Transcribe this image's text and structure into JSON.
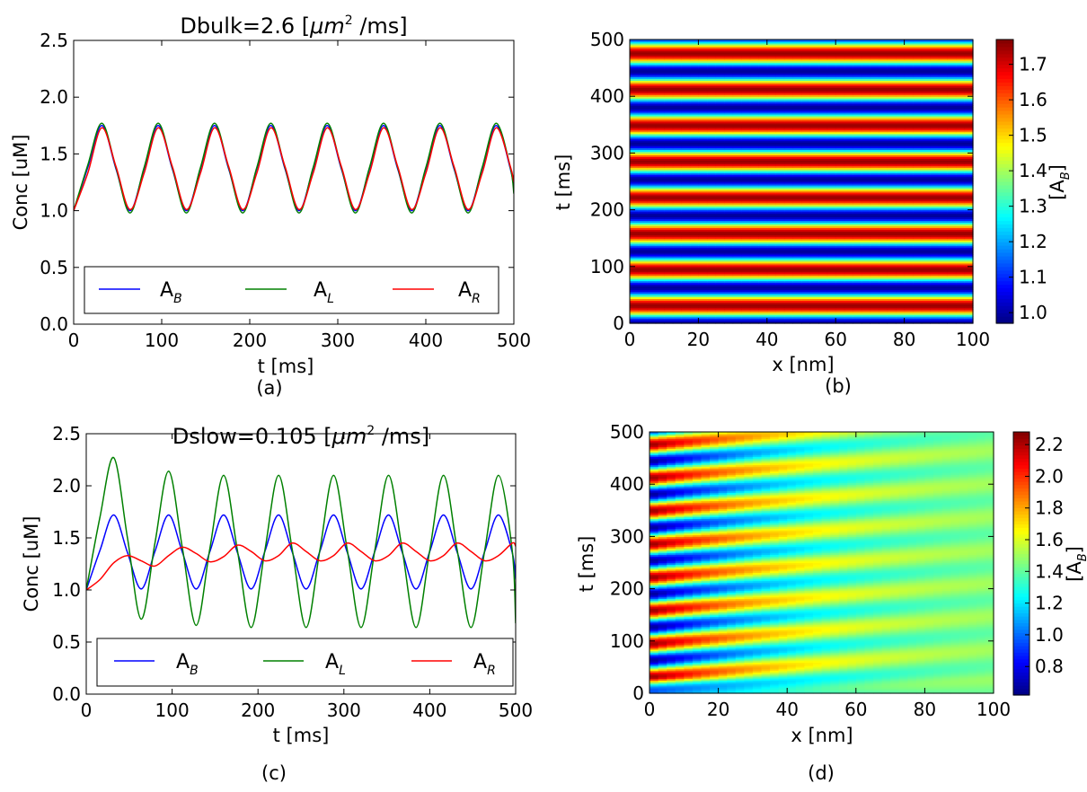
{
  "chart_data": [
    {
      "panel": "(a)",
      "type": "line",
      "title": "Dbulk=2.6 [μm² /ms]",
      "title_parts": [
        "Dbulk=2.6 [",
        "μm",
        "2",
        " /ms]"
      ],
      "xlabel": "t [ms]",
      "ylabel": "Conc [uM]",
      "xlim": [
        0,
        500
      ],
      "ylim": [
        0.0,
        2.5
      ],
      "xticks": [
        0,
        100,
        200,
        300,
        400,
        500
      ],
      "yticks": [
        "0.0",
        "0.5",
        "1.0",
        "1.5",
        "2.0",
        "2.5"
      ],
      "legend_position": "bottom",
      "period_ms": 63.5,
      "series": [
        {
          "name": "AB",
          "label_main": "A",
          "label_sub": "B",
          "color": "#0000ff",
          "x": [
            0,
            16,
            32,
            48,
            64,
            80,
            96,
            112,
            128,
            144,
            160,
            176,
            192,
            208,
            224,
            240,
            256,
            272,
            288,
            304,
            320,
            336,
            352,
            368,
            384,
            400,
            416,
            432,
            448,
            464,
            480,
            496,
            500
          ],
          "values": [
            1.0,
            1.38,
            1.75,
            1.37,
            1.0,
            1.37,
            1.75,
            1.37,
            1.0,
            1.37,
            1.75,
            1.37,
            1.0,
            1.37,
            1.75,
            1.37,
            1.0,
            1.37,
            1.75,
            1.37,
            1.0,
            1.37,
            1.75,
            1.37,
            1.0,
            1.37,
            1.75,
            1.37,
            1.0,
            1.37,
            1.75,
            1.37,
            1.2
          ]
        },
        {
          "name": "AL",
          "label_main": "A",
          "label_sub": "L",
          "color": "#008000",
          "x": [
            0,
            16,
            32,
            48,
            64,
            80,
            96,
            112,
            128,
            144,
            160,
            176,
            192,
            208,
            224,
            240,
            256,
            272,
            288,
            304,
            320,
            336,
            352,
            368,
            384,
            400,
            416,
            432,
            448,
            464,
            480,
            496,
            500
          ],
          "values": [
            1.0,
            1.4,
            1.77,
            1.38,
            0.98,
            1.38,
            1.77,
            1.38,
            0.98,
            1.38,
            1.77,
            1.38,
            0.98,
            1.38,
            1.77,
            1.38,
            0.98,
            1.38,
            1.77,
            1.38,
            0.98,
            1.38,
            1.77,
            1.38,
            0.98,
            1.38,
            1.77,
            1.38,
            0.98,
            1.38,
            1.77,
            1.38,
            1.15
          ]
        },
        {
          "name": "AR",
          "label_main": "A",
          "label_sub": "R",
          "color": "#ff0000",
          "x": [
            0,
            16,
            32,
            48,
            64,
            80,
            96,
            112,
            128,
            144,
            160,
            176,
            192,
            208,
            224,
            240,
            256,
            272,
            288,
            304,
            320,
            336,
            352,
            368,
            384,
            400,
            416,
            432,
            448,
            464,
            480,
            496,
            500
          ],
          "values": [
            1.0,
            1.33,
            1.73,
            1.39,
            1.01,
            1.33,
            1.73,
            1.39,
            1.01,
            1.33,
            1.73,
            1.39,
            1.01,
            1.33,
            1.73,
            1.39,
            1.01,
            1.33,
            1.73,
            1.39,
            1.01,
            1.33,
            1.73,
            1.39,
            1.01,
            1.33,
            1.73,
            1.39,
            1.01,
            1.33,
            1.73,
            1.39,
            1.25
          ]
        }
      ]
    },
    {
      "panel": "(b)",
      "type": "heatmap",
      "xlabel": "x [nm]",
      "ylabel": "t [ms]",
      "xlim": [
        0,
        100
      ],
      "ylim": [
        0,
        500
      ],
      "xticks": [
        0,
        20,
        40,
        60,
        80,
        100
      ],
      "yticks": [
        0,
        100,
        200,
        300,
        400,
        500
      ],
      "colorbar_label": "[AB]",
      "colorbar_label_parts": [
        "[A",
        "B",
        "]"
      ],
      "colorbar_range": [
        0.97,
        1.77
      ],
      "colorbar_ticks": [
        "1.0",
        "1.1",
        "1.2",
        "1.3",
        "1.4",
        "1.5",
        "1.6",
        "1.7"
      ],
      "colormap": "jet",
      "period_ms": 63.5,
      "mean": 1.37,
      "amplitude": 0.38,
      "spatial_damping_length_nm": 0
    },
    {
      "panel": "(c)",
      "type": "line",
      "title": "Dslow=0.105 [μm² /ms]",
      "title_parts": [
        "Dslow=0.105 [",
        "μm",
        "2",
        " /ms]"
      ],
      "xlabel": "t [ms]",
      "ylabel": "Conc [uM]",
      "xlim": [
        0,
        500
      ],
      "ylim": [
        0.0,
        2.5
      ],
      "xticks": [
        0,
        100,
        200,
        300,
        400,
        500
      ],
      "yticks": [
        "0.0",
        "0.5",
        "1.0",
        "1.5",
        "2.0",
        "2.5"
      ],
      "legend_position": "bottom",
      "period_ms": 63.5,
      "series": [
        {
          "name": "AB",
          "label_main": "A",
          "label_sub": "B",
          "color": "#0000ff",
          "x": [
            0,
            16,
            32,
            48,
            64,
            80,
            96,
            112,
            128,
            144,
            160,
            176,
            192,
            208,
            224,
            240,
            256,
            272,
            288,
            304,
            320,
            336,
            352,
            368,
            384,
            400,
            416,
            432,
            448,
            464,
            480,
            496,
            500
          ],
          "values": [
            1.0,
            1.38,
            1.72,
            1.36,
            1.01,
            1.37,
            1.72,
            1.36,
            1.01,
            1.37,
            1.72,
            1.36,
            1.01,
            1.37,
            1.72,
            1.36,
            1.01,
            1.37,
            1.72,
            1.36,
            1.01,
            1.37,
            1.72,
            1.36,
            1.01,
            1.37,
            1.72,
            1.36,
            1.01,
            1.37,
            1.72,
            1.36,
            1.1
          ]
        },
        {
          "name": "AL",
          "label_main": "A",
          "label_sub": "L",
          "color": "#008000",
          "x": [
            0,
            16,
            32,
            48,
            64,
            80,
            96,
            112,
            128,
            144,
            160,
            176,
            192,
            208,
            224,
            240,
            256,
            272,
            288,
            304,
            320,
            336,
            352,
            368,
            384,
            400,
            416,
            432,
            448,
            464,
            480,
            496,
            500
          ],
          "values": [
            1.0,
            1.7,
            2.27,
            1.5,
            0.72,
            1.45,
            2.14,
            1.4,
            0.66,
            1.4,
            2.1,
            1.38,
            0.64,
            1.38,
            2.1,
            1.38,
            0.64,
            1.38,
            2.1,
            1.38,
            0.64,
            1.38,
            2.1,
            1.38,
            0.64,
            1.38,
            2.1,
            1.38,
            0.64,
            1.38,
            2.1,
            1.38,
            0.68
          ]
        },
        {
          "name": "AR",
          "label_main": "A",
          "label_sub": "R",
          "color": "#ff0000",
          "x": [
            0,
            16,
            32,
            48,
            64,
            80,
            96,
            112,
            128,
            144,
            160,
            176,
            192,
            208,
            224,
            240,
            256,
            272,
            288,
            304,
            320,
            336,
            352,
            368,
            384,
            400,
            416,
            432,
            448,
            464,
            480,
            496,
            500
          ],
          "values": [
            1.0,
            1.1,
            1.26,
            1.33,
            1.28,
            1.23,
            1.33,
            1.41,
            1.35,
            1.27,
            1.32,
            1.43,
            1.37,
            1.28,
            1.33,
            1.45,
            1.37,
            1.28,
            1.33,
            1.45,
            1.37,
            1.28,
            1.33,
            1.45,
            1.37,
            1.28,
            1.33,
            1.45,
            1.37,
            1.28,
            1.33,
            1.45,
            1.42
          ]
        }
      ]
    },
    {
      "panel": "(d)",
      "type": "heatmap",
      "xlabel": "x [nm]",
      "ylabel": "t [ms]",
      "xlim": [
        0,
        100
      ],
      "ylim": [
        0,
        500
      ],
      "xticks": [
        0,
        20,
        40,
        60,
        80,
        100
      ],
      "yticks": [
        0,
        100,
        200,
        300,
        400,
        500
      ],
      "colorbar_label": "[AB]",
      "colorbar_label_parts": [
        "[A",
        "B",
        "]"
      ],
      "colorbar_range": [
        0.62,
        2.28
      ],
      "colorbar_ticks": [
        "0.8",
        "1.0",
        "1.2",
        "1.4",
        "1.6",
        "1.8",
        "2.0",
        "2.2"
      ],
      "colormap": "jet",
      "period_ms": 63.5,
      "mean": 1.45,
      "amplitude": 0.8,
      "spatial_damping_length_nm": 38
    }
  ]
}
